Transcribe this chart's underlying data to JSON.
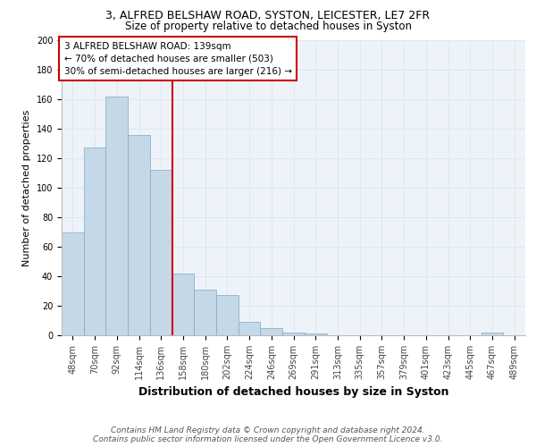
{
  "title_line1": "3, ALFRED BELSHAW ROAD, SYSTON, LEICESTER, LE7 2FR",
  "title_line2": "Size of property relative to detached houses in Syston",
  "xlabel": "Distribution of detached houses by size in Syston",
  "ylabel": "Number of detached properties",
  "categories": [
    "48sqm",
    "70sqm",
    "92sqm",
    "114sqm",
    "136sqm",
    "158sqm",
    "180sqm",
    "202sqm",
    "224sqm",
    "246sqm",
    "269sqm",
    "291sqm",
    "313sqm",
    "335sqm",
    "357sqm",
    "379sqm",
    "401sqm",
    "423sqm",
    "445sqm",
    "467sqm",
    "489sqm"
  ],
  "values": [
    70,
    127,
    162,
    136,
    112,
    42,
    31,
    27,
    9,
    5,
    2,
    1,
    0,
    0,
    0,
    0,
    0,
    0,
    0,
    2,
    0
  ],
  "bar_color": "#c5d8e8",
  "bar_edge_color": "#7baac7",
  "vline_x_index": 4,
  "vline_color": "#cc0000",
  "annotation_text": "3 ALFRED BELSHAW ROAD: 139sqm\n← 70% of detached houses are smaller (503)\n30% of semi-detached houses are larger (216) →",
  "annotation_box_color": "#cc0000",
  "annotation_text_color": "#000000",
  "ylim": [
    0,
    200
  ],
  "yticks": [
    0,
    20,
    40,
    60,
    80,
    100,
    120,
    140,
    160,
    180,
    200
  ],
  "grid_color": "#dce8f0",
  "bg_color": "#edf3f8",
  "footer_text": "Contains HM Land Registry data © Crown copyright and database right 2024.\nContains public sector information licensed under the Open Government Licence v3.0.",
  "title_fontsize": 9,
  "subtitle_fontsize": 8.5,
  "xlabel_fontsize": 9,
  "ylabel_fontsize": 8,
  "tick_fontsize": 7,
  "footer_fontsize": 6.5
}
